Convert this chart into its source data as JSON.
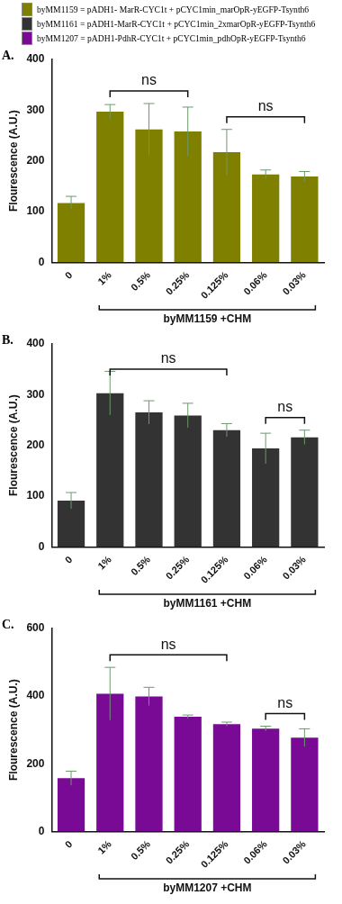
{
  "chart_data": [
    {
      "type": "bar",
      "title": "A.",
      "ylabel": "Flourescence (A.U.)",
      "xlabel": "byMM1159 +CHM",
      "categories": [
        "0",
        "1%",
        "0.5%",
        "0.25%",
        "0.125%",
        "0.06%",
        "0.03%"
      ],
      "series": [
        {
          "name": "byMM1159 = pADH1- MarR-CYC1t + pCYC1min_marOpR-yEGFP-Tsynth6",
          "color": "#7f7f00",
          "values": [
            117,
            297,
            262,
            258,
            217,
            173,
            169
          ],
          "errors": [
            13,
            14,
            51,
            48,
            45,
            9,
            10
          ]
        }
      ],
      "ylim": [
        0,
        400
      ],
      "yticks": [
        0,
        100,
        200,
        300,
        400
      ],
      "legend": "top",
      "annotations": [
        "ns",
        "ns"
      ]
    },
    {
      "type": "bar",
      "title": "B.",
      "ylabel": "Flourescence (A.U.)",
      "xlabel": "byMM1161 +CHM",
      "categories": [
        "0",
        "1%",
        "0.5%",
        "0.25%",
        "0.125%",
        "0.06%",
        "0.03%"
      ],
      "series": [
        {
          "name": "byMM1161 = pADH1-MarR-CYC1t + pCYC1min_2xmarOpR-yEGFP-Tsynth6",
          "color": "#333333",
          "values": [
            91,
            303,
            265,
            259,
            230,
            194,
            216
          ],
          "errors": [
            16,
            43,
            23,
            24,
            13,
            30,
            14
          ]
        }
      ],
      "ylim": [
        0,
        400
      ],
      "yticks": [
        0,
        100,
        200,
        300,
        400
      ],
      "legend": "top",
      "annotations": [
        "ns",
        "ns"
      ]
    },
    {
      "type": "bar",
      "title": "C.",
      "ylabel": "Flourescence (A.U.)",
      "xlabel": "byMM1207 +CHM",
      "categories": [
        "0",
        "1%",
        "0.5%",
        "0.25%",
        "0.125%",
        "0.06%",
        "0.03%"
      ],
      "series": [
        {
          "name": "byMM1207 = pADH1-PdhR-CYC1t + pCYC1min_pdhOpR-yEGFP-Tsynth6",
          "color": "#780a96",
          "values": [
            157,
            407,
            399,
            339,
            317,
            304,
            277
          ],
          "errors": [
            21,
            78,
            27,
            5,
            6,
            7,
            26
          ]
        }
      ],
      "ylim": [
        0,
        600
      ],
      "yticks": [
        0,
        200,
        400,
        600
      ],
      "legend": "top",
      "annotations": [
        "ns",
        "ns"
      ]
    }
  ]
}
